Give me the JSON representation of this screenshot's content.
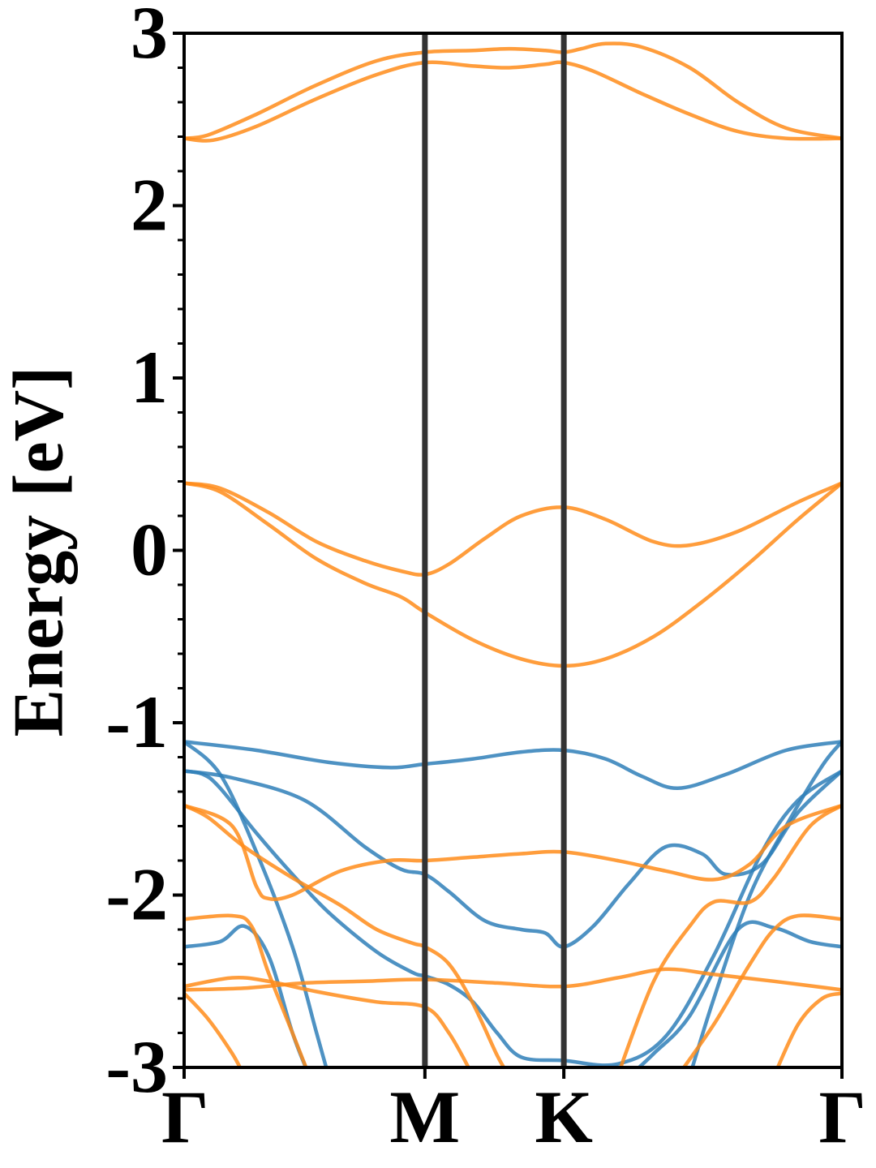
{
  "chart_data": {
    "type": "line",
    "title": "",
    "xlabel": "",
    "ylabel": "Energy [eV]",
    "ylim": [
      -3,
      3
    ],
    "yticks": [
      "3",
      "2",
      "1",
      "0",
      "-1",
      "-2",
      "-3"
    ],
    "xticks": [
      {
        "label": "Γ",
        "k": 0
      },
      {
        "label": "M",
        "k": 1.0
      },
      {
        "label": "K",
        "k": 1.577
      },
      {
        "label": "Γ",
        "k": 2.732
      }
    ],
    "vlines_at": [
      1.0,
      1.577
    ],
    "colors": {
      "orange": "#ff8c1a",
      "blue": "#2f7fb8",
      "axis": "#000000",
      "vline": "#333333"
    },
    "series": [
      {
        "color": "orange",
        "points": [
          [
            0,
            2.39
          ],
          [
            0.12,
            2.38
          ],
          [
            0.3,
            2.46
          ],
          [
            0.55,
            2.62
          ],
          [
            0.8,
            2.76
          ],
          [
            1.0,
            2.83
          ],
          [
            1.2,
            2.81
          ],
          [
            1.35,
            2.8
          ],
          [
            1.5,
            2.82
          ],
          [
            1.577,
            2.83
          ],
          [
            1.7,
            2.78
          ],
          [
            1.9,
            2.65
          ],
          [
            2.1,
            2.53
          ],
          [
            2.3,
            2.43
          ],
          [
            2.5,
            2.39
          ],
          [
            2.732,
            2.39
          ]
        ]
      },
      {
        "color": "orange",
        "points": [
          [
            0,
            2.39
          ],
          [
            0.1,
            2.41
          ],
          [
            0.3,
            2.53
          ],
          [
            0.55,
            2.7
          ],
          [
            0.8,
            2.84
          ],
          [
            1.0,
            2.89
          ],
          [
            1.2,
            2.9
          ],
          [
            1.35,
            2.91
          ],
          [
            1.5,
            2.9
          ],
          [
            1.577,
            2.89
          ],
          [
            1.65,
            2.91
          ],
          [
            1.75,
            2.94
          ],
          [
            1.9,
            2.92
          ],
          [
            2.1,
            2.8
          ],
          [
            2.3,
            2.6
          ],
          [
            2.5,
            2.45
          ],
          [
            2.732,
            2.39
          ]
        ]
      },
      {
        "color": "orange",
        "points": [
          [
            0,
            0.39
          ],
          [
            0.15,
            0.34
          ],
          [
            0.35,
            0.15
          ],
          [
            0.55,
            -0.05
          ],
          [
            0.75,
            -0.19
          ],
          [
            0.9,
            -0.27
          ],
          [
            1.0,
            -0.36
          ],
          [
            1.2,
            -0.52
          ],
          [
            1.4,
            -0.63
          ],
          [
            1.577,
            -0.67
          ],
          [
            1.75,
            -0.63
          ],
          [
            1.95,
            -0.5
          ],
          [
            2.15,
            -0.3
          ],
          [
            2.35,
            -0.07
          ],
          [
            2.55,
            0.18
          ],
          [
            2.732,
            0.39
          ]
        ]
      },
      {
        "color": "orange",
        "points": [
          [
            0,
            0.39
          ],
          [
            0.15,
            0.36
          ],
          [
            0.35,
            0.22
          ],
          [
            0.55,
            0.05
          ],
          [
            0.75,
            -0.06
          ],
          [
            0.9,
            -0.12
          ],
          [
            1.0,
            -0.14
          ],
          [
            1.1,
            -0.08
          ],
          [
            1.25,
            0.07
          ],
          [
            1.4,
            0.2
          ],
          [
            1.577,
            0.25
          ],
          [
            1.75,
            0.18
          ],
          [
            1.95,
            0.05
          ],
          [
            2.1,
            0.03
          ],
          [
            2.3,
            0.11
          ],
          [
            2.55,
            0.28
          ],
          [
            2.732,
            0.39
          ]
        ]
      },
      {
        "color": "blue",
        "points": [
          [
            0,
            -1.11
          ],
          [
            0.3,
            -1.16
          ],
          [
            0.6,
            -1.23
          ],
          [
            0.85,
            -1.26
          ],
          [
            1.0,
            -1.24
          ],
          [
            1.2,
            -1.21
          ],
          [
            1.4,
            -1.17
          ],
          [
            1.577,
            -1.16
          ],
          [
            1.75,
            -1.21
          ],
          [
            1.9,
            -1.31
          ],
          [
            2.05,
            -1.38
          ],
          [
            2.25,
            -1.3
          ],
          [
            2.5,
            -1.16
          ],
          [
            2.732,
            -1.11
          ]
        ]
      },
      {
        "color": "blue",
        "points": [
          [
            0,
            -1.28
          ],
          [
            0.2,
            -1.32
          ],
          [
            0.5,
            -1.45
          ],
          [
            0.75,
            -1.72
          ],
          [
            0.9,
            -1.85
          ],
          [
            1.0,
            -1.88
          ],
          [
            1.1,
            -1.98
          ],
          [
            1.25,
            -2.15
          ],
          [
            1.4,
            -2.2
          ],
          [
            1.5,
            -2.22
          ],
          [
            1.577,
            -2.3
          ],
          [
            1.7,
            -2.18
          ],
          [
            1.85,
            -1.93
          ],
          [
            2.0,
            -1.72
          ],
          [
            2.15,
            -1.76
          ],
          [
            2.25,
            -1.88
          ],
          [
            2.4,
            -1.82
          ],
          [
            2.55,
            -1.52
          ],
          [
            2.732,
            -1.28
          ]
        ]
      },
      {
        "color": "blue",
        "points": [
          [
            0,
            -1.28
          ],
          [
            0.08,
            -1.3
          ],
          [
            0.15,
            -1.38
          ],
          [
            0.3,
            -1.64
          ],
          [
            0.45,
            -1.88
          ],
          [
            0.6,
            -2.1
          ],
          [
            0.8,
            -2.33
          ],
          [
            0.95,
            -2.45
          ],
          [
            1.0,
            -2.47
          ],
          [
            1.1,
            -2.52
          ],
          [
            1.2,
            -2.62
          ],
          [
            1.3,
            -2.8
          ],
          [
            1.4,
            -2.94
          ],
          [
            1.577,
            -2.96
          ],
          [
            1.8,
            -2.98
          ],
          [
            2.0,
            -2.82
          ],
          [
            2.2,
            -2.35
          ],
          [
            2.4,
            -1.75
          ],
          [
            2.55,
            -1.45
          ],
          [
            2.732,
            -1.28
          ]
        ]
      },
      {
        "color": "blue",
        "points": [
          [
            0,
            -1.11
          ],
          [
            0.15,
            -1.3
          ],
          [
            0.3,
            -1.75
          ],
          [
            0.45,
            -2.3
          ],
          [
            0.55,
            -2.8
          ],
          [
            0.6,
            -3.05
          ]
        ]
      },
      {
        "color": "blue",
        "points": [
          [
            0,
            -2.3
          ],
          [
            0.15,
            -2.27
          ],
          [
            0.25,
            -2.18
          ],
          [
            0.35,
            -2.35
          ],
          [
            0.45,
            -2.8
          ],
          [
            0.52,
            -3.05
          ]
        ]
      },
      {
        "color": "blue",
        "points": [
          [
            2.1,
            -3.05
          ],
          [
            2.2,
            -2.6
          ],
          [
            2.35,
            -2.0
          ],
          [
            2.5,
            -1.6
          ],
          [
            2.65,
            -1.25
          ],
          [
            2.732,
            -1.11
          ]
        ]
      },
      {
        "color": "blue",
        "points": [
          [
            1.85,
            -3.05
          ],
          [
            1.95,
            -2.92
          ],
          [
            2.1,
            -2.7
          ],
          [
            2.3,
            -2.2
          ],
          [
            2.45,
            -2.19
          ],
          [
            2.6,
            -2.27
          ],
          [
            2.732,
            -2.3
          ]
        ]
      },
      {
        "color": "orange",
        "points": [
          [
            0,
            -1.48
          ],
          [
            0.2,
            -1.6
          ],
          [
            0.3,
            -1.95
          ],
          [
            0.35,
            -2.02
          ],
          [
            0.45,
            -2.0
          ],
          [
            0.65,
            -1.86
          ],
          [
            0.85,
            -1.8
          ],
          [
            1.0,
            -1.8
          ],
          [
            1.2,
            -1.78
          ],
          [
            1.4,
            -1.76
          ],
          [
            1.577,
            -1.75
          ],
          [
            1.8,
            -1.8
          ],
          [
            2.0,
            -1.86
          ],
          [
            2.2,
            -1.91
          ],
          [
            2.35,
            -1.82
          ],
          [
            2.5,
            -1.6
          ],
          [
            2.732,
            -1.48
          ]
        ]
      },
      {
        "color": "orange",
        "points": [
          [
            0,
            -1.48
          ],
          [
            0.1,
            -1.55
          ],
          [
            0.25,
            -1.72
          ],
          [
            0.45,
            -1.9
          ],
          [
            0.65,
            -2.06
          ],
          [
            0.8,
            -2.2
          ],
          [
            0.95,
            -2.28
          ],
          [
            1.0,
            -2.3
          ],
          [
            1.1,
            -2.4
          ],
          [
            1.2,
            -2.63
          ],
          [
            1.3,
            -2.93
          ],
          [
            1.35,
            -3.05
          ]
        ]
      },
      {
        "color": "orange",
        "points": [
          [
            0,
            -2.55
          ],
          [
            0.25,
            -2.54
          ],
          [
            0.5,
            -2.51
          ],
          [
            0.75,
            -2.5
          ],
          [
            1.0,
            -2.49
          ],
          [
            1.3,
            -2.51
          ],
          [
            1.577,
            -2.53
          ],
          [
            1.8,
            -2.48
          ],
          [
            2.0,
            -2.43
          ],
          [
            2.2,
            -2.46
          ],
          [
            2.45,
            -2.5
          ],
          [
            2.732,
            -2.55
          ]
        ]
      },
      {
        "color": "orange",
        "points": [
          [
            0,
            -2.53
          ],
          [
            0.2,
            -2.48
          ],
          [
            0.35,
            -2.5
          ],
          [
            0.55,
            -2.56
          ],
          [
            0.8,
            -2.62
          ],
          [
            1.0,
            -2.65
          ],
          [
            1.1,
            -2.8
          ],
          [
            1.2,
            -3.05
          ]
        ]
      },
      {
        "color": "orange",
        "points": [
          [
            0,
            -2.14
          ],
          [
            0.2,
            -2.12
          ],
          [
            0.28,
            -2.18
          ],
          [
            0.35,
            -2.45
          ],
          [
            0.45,
            -2.8
          ],
          [
            0.52,
            -3.05
          ]
        ]
      },
      {
        "color": "orange",
        "points": [
          [
            0,
            -2.57
          ],
          [
            0.1,
            -2.72
          ],
          [
            0.2,
            -2.92
          ],
          [
            0.25,
            -3.05
          ]
        ]
      },
      {
        "color": "orange",
        "points": [
          [
            1.8,
            -3.05
          ],
          [
            1.95,
            -2.5
          ],
          [
            2.1,
            -2.18
          ],
          [
            2.2,
            -2.04
          ],
          [
            2.35,
            -2.04
          ],
          [
            2.45,
            -1.9
          ],
          [
            2.6,
            -1.6
          ],
          [
            2.732,
            -1.48
          ]
        ]
      },
      {
        "color": "orange",
        "points": [
          [
            2.05,
            -3.05
          ],
          [
            2.2,
            -2.75
          ],
          [
            2.35,
            -2.4
          ],
          [
            2.45,
            -2.2
          ],
          [
            2.55,
            -2.12
          ],
          [
            2.732,
            -2.14
          ]
        ]
      },
      {
        "color": "orange",
        "points": [
          [
            2.45,
            -3.05
          ],
          [
            2.55,
            -2.75
          ],
          [
            2.65,
            -2.6
          ],
          [
            2.732,
            -2.57
          ]
        ]
      }
    ]
  }
}
